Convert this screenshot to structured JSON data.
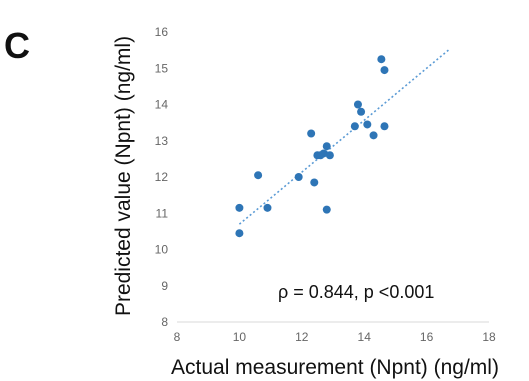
{
  "panel_label": "C",
  "chart_data": {
    "type": "scatter",
    "title": "",
    "xlabel": "Actual measurement (Npnt) (ng/ml)",
    "ylabel": "Predicted value (Npnt) (ng/ml)",
    "xlim": [
      8,
      18
    ],
    "ylim": [
      8,
      16
    ],
    "xticks": [
      "8",
      "10",
      "12",
      "14",
      "16",
      "18"
    ],
    "yticks": [
      "8",
      "9",
      "10",
      "11",
      "12",
      "13",
      "14",
      "15",
      "16"
    ],
    "grid": false,
    "legend": "none",
    "point_color": "#2e75b6",
    "trendline_color": "#5b9bd5",
    "annotation": "ρ = 0.844, p <0.001",
    "trendline": {
      "x": [
        10.0,
        16.7
      ],
      "y": [
        10.7,
        15.5
      ]
    },
    "points": [
      {
        "x": 10.0,
        "y": 11.15
      },
      {
        "x": 10.0,
        "y": 10.45
      },
      {
        "x": 10.6,
        "y": 12.05
      },
      {
        "x": 10.9,
        "y": 11.15
      },
      {
        "x": 11.9,
        "y": 12.0
      },
      {
        "x": 12.3,
        "y": 13.2
      },
      {
        "x": 12.4,
        "y": 11.85
      },
      {
        "x": 12.5,
        "y": 12.6
      },
      {
        "x": 12.6,
        "y": 12.6
      },
      {
        "x": 12.7,
        "y": 12.65
      },
      {
        "x": 12.8,
        "y": 12.85
      },
      {
        "x": 12.9,
        "y": 12.6
      },
      {
        "x": 12.8,
        "y": 11.1
      },
      {
        "x": 13.7,
        "y": 13.4
      },
      {
        "x": 13.8,
        "y": 14.0
      },
      {
        "x": 13.9,
        "y": 13.8
      },
      {
        "x": 14.1,
        "y": 13.45
      },
      {
        "x": 14.3,
        "y": 13.15
      },
      {
        "x": 14.55,
        "y": 15.25
      },
      {
        "x": 14.65,
        "y": 14.95
      },
      {
        "x": 14.65,
        "y": 13.4
      }
    ]
  }
}
